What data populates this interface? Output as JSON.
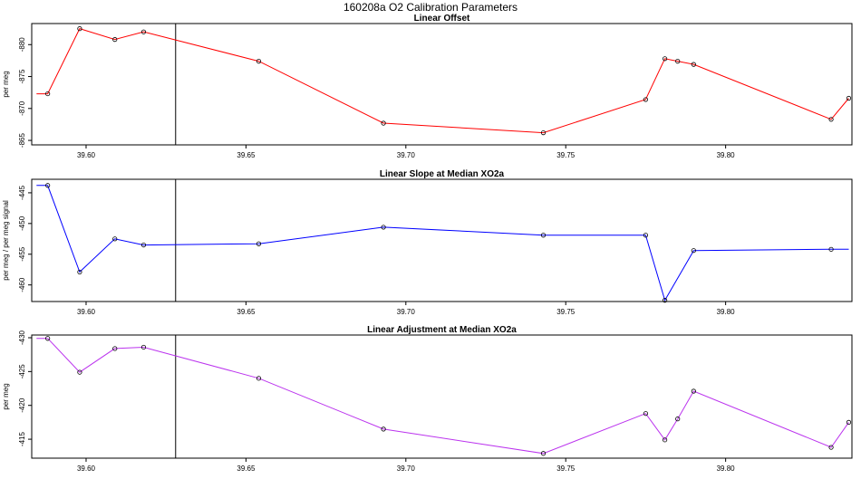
{
  "figure": {
    "title": "160208a   O2 Calibration Parameters"
  },
  "chart_data": [
    {
      "type": "line",
      "title": "Linear Offset",
      "ylabel": "per meg",
      "xlabel": "",
      "xlim": [
        39.583,
        39.8395
      ],
      "ylim": [
        -883.3,
        -864.3
      ],
      "y_reversed": true,
      "x_ticks": [
        "39.60",
        "39.65",
        "39.70",
        "39.75",
        "39.80"
      ],
      "y_ticks": [
        "-865",
        "-870",
        "-875",
        "-880"
      ],
      "vline_x": 39.628,
      "series": [
        {
          "color": "#ff0000",
          "x": [
            39.5845,
            39.588,
            39.598,
            39.609,
            39.618,
            39.654,
            39.693,
            39.743,
            39.775,
            39.781,
            39.785,
            39.79,
            39.833,
            39.8385
          ],
          "y": [
            -872.3,
            -872.3,
            -882.5,
            -880.8,
            -882.0,
            -877.4,
            -867.7,
            -866.2,
            -871.4,
            -877.8,
            -877.4,
            -876.9,
            -868.3,
            -871.6
          ],
          "markers": [
            false,
            true,
            true,
            true,
            true,
            true,
            true,
            true,
            true,
            true,
            true,
            true,
            true,
            true
          ]
        }
      ]
    },
    {
      "type": "line",
      "title": "Linear Slope at Median XO2a",
      "ylabel": "per meg / per meg signal",
      "xlabel": "",
      "xlim": [
        39.583,
        39.8395
      ],
      "ylim": [
        -442.8,
        -462.7
      ],
      "y_reversed": true,
      "x_ticks": [
        "39.60",
        "39.65",
        "39.70",
        "39.75",
        "39.80"
      ],
      "y_ticks": [
        "-460",
        "-455",
        "-450",
        "-445"
      ],
      "vline_x": 39.628,
      "series": [
        {
          "color": "#0000ff",
          "x": [
            39.5845,
            39.588,
            39.598,
            39.609,
            39.618,
            39.654,
            39.693,
            39.743,
            39.775,
            39.781,
            39.79,
            39.833,
            39.8385
          ],
          "y": [
            -443.8,
            -443.8,
            -457.9,
            -452.5,
            -453.5,
            -453.3,
            -450.6,
            -451.9,
            -451.9,
            -462.5,
            -454.4,
            -454.2,
            -454.2
          ],
          "markers": [
            false,
            true,
            true,
            true,
            true,
            true,
            true,
            true,
            true,
            true,
            true,
            true,
            false
          ]
        }
      ]
    },
    {
      "type": "line",
      "title": "Linear Adjustment at Median XO2a",
      "ylabel": "per meg",
      "xlabel": "",
      "xlim": [
        39.583,
        39.8395
      ],
      "ylim": [
        -430.4,
        -412.2
      ],
      "y_reversed": true,
      "x_ticks": [
        "39.60",
        "39.65",
        "39.70",
        "39.75",
        "39.80"
      ],
      "y_ticks": [
        "-415",
        "-420",
        "-425",
        "-430"
      ],
      "vline_x": 39.628,
      "series": [
        {
          "color": "#bb33ee",
          "x": [
            39.5845,
            39.588,
            39.598,
            39.609,
            39.618,
            39.654,
            39.693,
            39.743,
            39.775,
            39.781,
            39.785,
            39.79,
            39.833,
            39.8385
          ],
          "y": [
            -429.9,
            -429.9,
            -424.9,
            -428.4,
            -428.6,
            -424.0,
            -416.5,
            -412.9,
            -418.8,
            -414.9,
            -418.0,
            -422.1,
            -413.8,
            -417.5
          ],
          "markers": [
            false,
            true,
            true,
            true,
            true,
            true,
            true,
            true,
            true,
            true,
            true,
            true,
            true,
            true
          ]
        }
      ]
    }
  ]
}
